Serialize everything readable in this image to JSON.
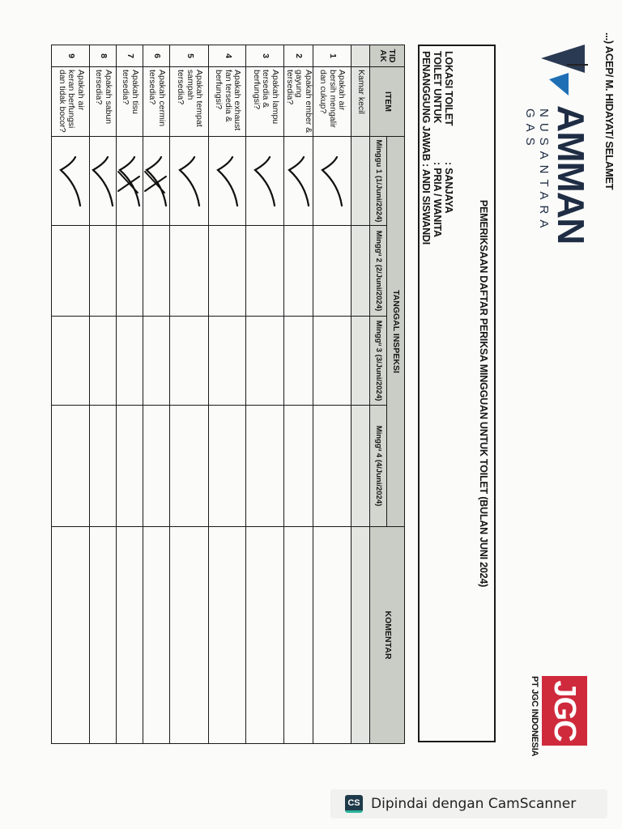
{
  "header": {
    "top_note": "...) ACEP/ M. HIDAYAT/ SELAMET",
    "logo_text": "AMMAN",
    "logo_subtext": "NUSANTARA GAS",
    "partner_logo_text": "JGC",
    "partner_name": "PT JGC INDONESIA"
  },
  "info": {
    "title": "PEMERIKSAAN DAFTAR PERIKSA MINGGUAN UNTUK TOILET (BULAN JUNI 2024)",
    "lines": [
      {
        "label": "LOKASI TOILET",
        "value": ": SANJAYA"
      },
      {
        "label": "TOILET UNTUK",
        "value": ": PRIA / WANITA"
      },
      {
        "label": "PENANGGUNG JAWAB",
        "value": ": ANDI SISWANDI"
      }
    ]
  },
  "table": {
    "col_no": "TID AK",
    "col_item": "ITEM",
    "col_date_group": "TANGGAL INSPEKSI",
    "col_comment": "KOMENTAR",
    "weeks": [
      "Minggu 1 (1/Juni/2024)",
      "Minggᵘ 2 (2/Juni/2024)",
      "Minggᵘ 3 (3/Juni/2024)",
      "Minggᵘ 4 (4/Juni/2024)"
    ],
    "category": "Kamar kecil",
    "rows": [
      {
        "no": "1",
        "item": "Apakah air bersih mengalir dan cukup?",
        "week1": "check"
      },
      {
        "no": "2",
        "item": "Apakah ember & gayung tersedia?",
        "week1": "check"
      },
      {
        "no": "3",
        "item": "Apakah lampu tersedia & berfungsi?",
        "week1": "check"
      },
      {
        "no": "4",
        "item": "Apakah exhaust fan tersedia & berfungsi?",
        "week1": "check"
      },
      {
        "no": "5",
        "item": "Apakah tempat sampah tersedia?",
        "week1": "check"
      },
      {
        "no": "6",
        "item": "Apakah cermin tersedia?",
        "week1": "check-crossed"
      },
      {
        "no": "7",
        "item": "Apakah tisu tersedia?",
        "week1": "check-crossed"
      },
      {
        "no": "8",
        "item": "Apakah sabun tersedia?",
        "week1": "check"
      },
      {
        "no": "9",
        "item": "Apakah air keran berfungsi dan tidak bocor?",
        "week1": "check"
      }
    ]
  },
  "footer": {
    "scanner_icon": "CS",
    "scanner_text": "Dipindai dengan CamScanner"
  }
}
